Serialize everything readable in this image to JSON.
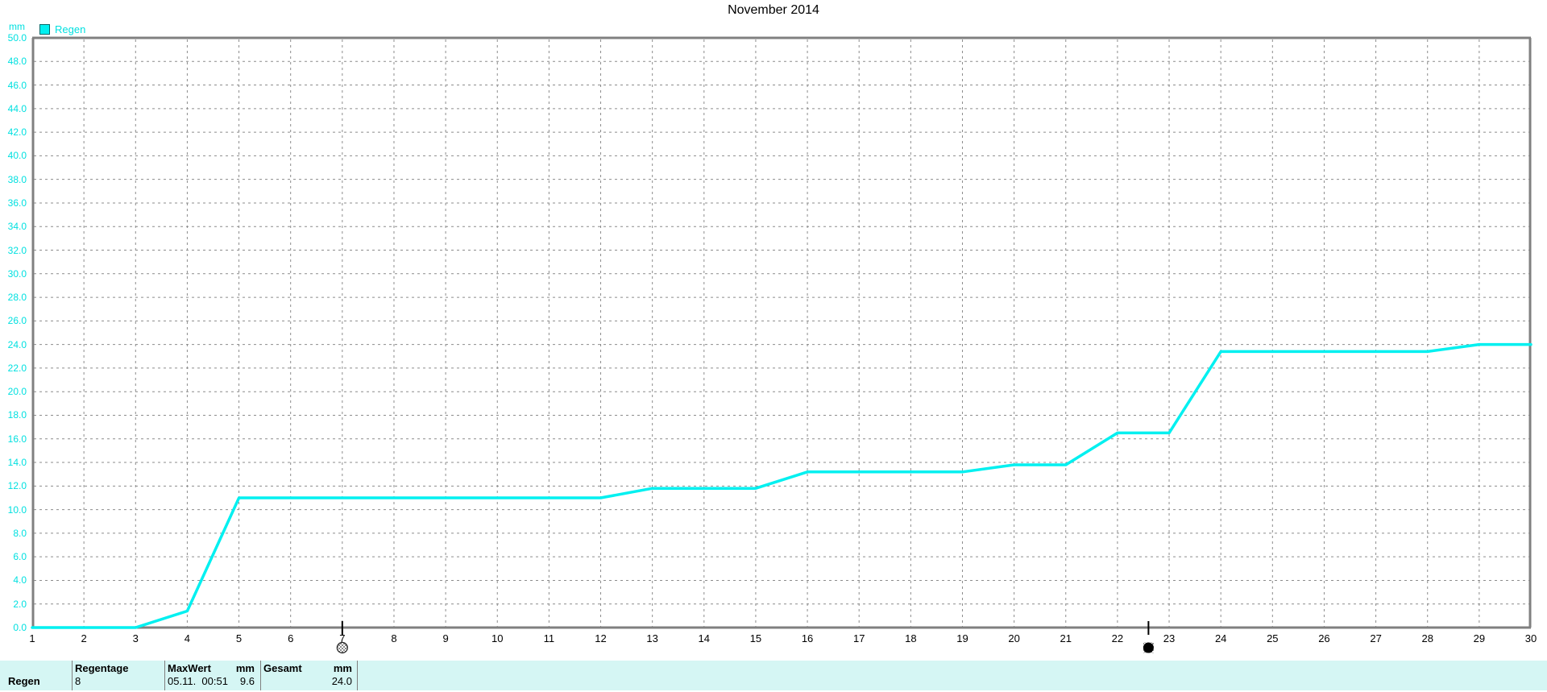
{
  "window": {
    "title": "November 2014"
  },
  "legend": {
    "unit": "mm",
    "series_label": "Regen"
  },
  "colors": {
    "line": "#00f0f0",
    "cyan_text": "#00e0e0",
    "grid": "#8c8c8c",
    "border": "#808080",
    "bar_background": "#d5f6f4",
    "bar_separator": "#808080",
    "moon_tick": "#000000"
  },
  "chart_data": {
    "type": "line",
    "title": "November 2014",
    "ylabel": "mm",
    "xlim": [
      1,
      30
    ],
    "xtick_step": 1,
    "ylim": [
      0,
      50
    ],
    "ytick_step": 2,
    "grid": "dashed",
    "legend_position": "top-left",
    "categories": [
      1,
      2,
      3,
      4,
      5,
      6,
      7,
      8,
      9,
      10,
      11,
      12,
      13,
      14,
      15,
      16,
      17,
      18,
      19,
      20,
      21,
      22,
      23,
      24,
      25,
      26,
      27,
      28,
      29,
      30
    ],
    "series": [
      {
        "name": "Regen",
        "color": "#00f0f0",
        "values": [
          0.0,
          0.0,
          0.0,
          1.4,
          11.0,
          11.0,
          11.0,
          11.0,
          11.0,
          11.0,
          11.0,
          11.0,
          11.8,
          11.8,
          11.8,
          13.2,
          13.2,
          13.2,
          13.2,
          13.8,
          13.8,
          16.5,
          16.5,
          23.4,
          23.4,
          23.4,
          23.4,
          23.4,
          24.0,
          24.0
        ]
      }
    ],
    "moon_markers": [
      {
        "x": 7,
        "phase": "full-moon"
      },
      {
        "x": 22.6,
        "phase": "new-moon"
      }
    ]
  },
  "summary_bar": {
    "row_label": "Regen",
    "regentage": {
      "header": "Regentage",
      "value": "8"
    },
    "maxwert": {
      "header": "MaxWert",
      "unit": "mm",
      "datetime": "05.11.  00:51",
      "amount": "9.6"
    },
    "gesamt": {
      "header": "Gesamt",
      "unit": "mm",
      "amount": "24.0"
    }
  }
}
